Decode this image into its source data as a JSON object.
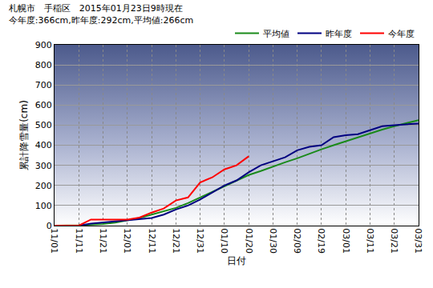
{
  "chart_data": {
    "type": "line",
    "title": "札幌市　手稲区　2015年01月23日9時現在",
    "subtitle": "今年度:366cm,昨年度:292cm,平均値:266cm",
    "x_label": "日付",
    "y_label": "累計降雪量(cm)",
    "categories": [
      "11/01",
      null,
      "11/11",
      null,
      "11/21",
      null,
      "12/01",
      null,
      "12/11",
      null,
      "12/21",
      null,
      "12/31",
      null,
      "01/10",
      null,
      "01/20",
      null,
      "01/30",
      null,
      "02/09",
      null,
      "02/19",
      null,
      "03/01",
      null,
      "03/11",
      null,
      "03/21",
      null,
      "03/31"
    ],
    "series": [
      {
        "name": "平均値",
        "color": "#1a8a1a",
        "values": [
          0,
          0,
          2,
          5,
          8,
          15,
          25,
          38,
          55,
          70,
          88,
          112,
          140,
          170,
          198,
          225,
          252,
          272,
          295,
          315,
          335,
          358,
          380,
          400,
          420,
          440,
          460,
          478,
          495,
          510,
          525
        ]
      },
      {
        "name": "昨年度",
        "color": "#000080",
        "values": [
          0,
          0,
          0,
          10,
          15,
          20,
          28,
          32,
          38,
          55,
          80,
          100,
          130,
          165,
          200,
          225,
          265,
          300,
          320,
          340,
          375,
          392,
          400,
          440,
          450,
          455,
          475,
          495,
          500,
          505,
          508
        ]
      },
      {
        "name": "今年度",
        "color": "#ff0000",
        "values": [
          0,
          0,
          0,
          30,
          30,
          30,
          30,
          40,
          65,
          85,
          125,
          140,
          215,
          240,
          280,
          300,
          345,
          null,
          null,
          null,
          null,
          null,
          null,
          null,
          null,
          null,
          null,
          null,
          null,
          null,
          null
        ]
      }
    ],
    "ylim": [
      0,
      900
    ],
    "yticks": [
      0,
      100,
      200,
      300,
      400,
      500,
      600,
      700,
      800,
      900
    ],
    "grid": true,
    "legend": "top right"
  }
}
